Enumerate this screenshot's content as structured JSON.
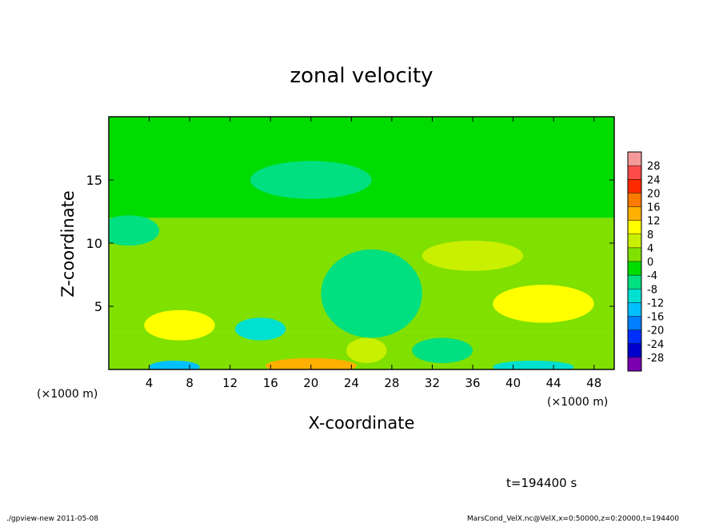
{
  "chart_data": {
    "type": "heatmap",
    "title": "zonal velocity",
    "xlabel": "X-coordinate",
    "ylabel": "Z-coordinate",
    "x_unit_left": "(×1000 m)",
    "x_unit_right": "(×1000 m)",
    "x_range": [
      0,
      50
    ],
    "y_range": [
      0,
      20
    ],
    "x_ticks": [
      4,
      8,
      12,
      16,
      20,
      24,
      28,
      32,
      36,
      40,
      44,
      48
    ],
    "y_ticks": [
      5,
      10,
      15
    ],
    "colorbar": {
      "levels": [
        28,
        24,
        20,
        16,
        12,
        8,
        4,
        0,
        -4,
        -8,
        -12,
        -16,
        -20,
        -24,
        -28
      ],
      "bins": [
        {
          "lo": 28,
          "hi": 32,
          "color": "#f59a9a"
        },
        {
          "lo": 24,
          "hi": 28,
          "color": "#ff4a4a"
        },
        {
          "lo": 20,
          "hi": 24,
          "color": "#ff2a00"
        },
        {
          "lo": 16,
          "hi": 20,
          "color": "#ff7a00"
        },
        {
          "lo": 12,
          "hi": 16,
          "color": "#ffb000"
        },
        {
          "lo": 8,
          "hi": 12,
          "color": "#ffff00"
        },
        {
          "lo": 4,
          "hi": 8,
          "color": "#c8f000"
        },
        {
          "lo": 0,
          "hi": 4,
          "color": "#80e000"
        },
        {
          "lo": -4,
          "hi": 0,
          "color": "#00dc00"
        },
        {
          "lo": -8,
          "hi": -4,
          "color": "#00e080"
        },
        {
          "lo": -12,
          "hi": -8,
          "color": "#00e0d0"
        },
        {
          "lo": -16,
          "hi": -12,
          "color": "#00c0ff"
        },
        {
          "lo": -20,
          "hi": -16,
          "color": "#0080ff"
        },
        {
          "lo": -24,
          "hi": -20,
          "color": "#0030ff"
        },
        {
          "lo": -28,
          "hi": -24,
          "color": "#0000cc"
        },
        {
          "lo": -32,
          "hi": -28,
          "color": "#7a00b0"
        }
      ]
    },
    "field": {
      "base": [
        {
          "z_min": 0,
          "z_max": 3,
          "value": 0
        },
        {
          "z_min": 3,
          "z_max": 12,
          "value": 1
        },
        {
          "z_min": 12,
          "z_max": 20,
          "value": -1
        }
      ],
      "features": [
        {
          "x": 7,
          "z": 3.5,
          "rx": 3.5,
          "rz": 1.2,
          "value": 9
        },
        {
          "x": 43,
          "z": 5.2,
          "rx": 5,
          "rz": 1.5,
          "value": 10
        },
        {
          "x": 20,
          "z": 0.3,
          "rx": 4.5,
          "rz": 0.6,
          "value": 12
        },
        {
          "x": 25.5,
          "z": 1.5,
          "rx": 2,
          "rz": 1,
          "value": 5
        },
        {
          "x": 6.5,
          "z": 0.2,
          "rx": 2.5,
          "rz": 0.5,
          "value": -13
        },
        {
          "x": 42,
          "z": 0.2,
          "rx": 4,
          "rz": 0.5,
          "value": -12
        },
        {
          "x": 15,
          "z": 3.2,
          "rx": 2.5,
          "rz": 0.9,
          "value": -9
        },
        {
          "x": 26,
          "z": 6,
          "rx": 5,
          "rz": 3.5,
          "value": -6
        },
        {
          "x": 33,
          "z": 1.5,
          "rx": 3,
          "rz": 1,
          "value": -8
        },
        {
          "x": 2,
          "z": 11,
          "rx": 3,
          "rz": 1.2,
          "value": -6
        },
        {
          "x": 20,
          "z": 15,
          "rx": 6,
          "rz": 1.5,
          "value": -6
        },
        {
          "x": 36,
          "z": 9,
          "rx": 5,
          "rz": 1.2,
          "value": 6
        }
      ]
    }
  },
  "annotations": {
    "time_label": "t=194400 s",
    "footer_left": "./gpview-new   2011-05-08",
    "footer_right": "MarsCond_VelX.nc@VelX,x=0:50000,z=0:20000,t=194400"
  }
}
